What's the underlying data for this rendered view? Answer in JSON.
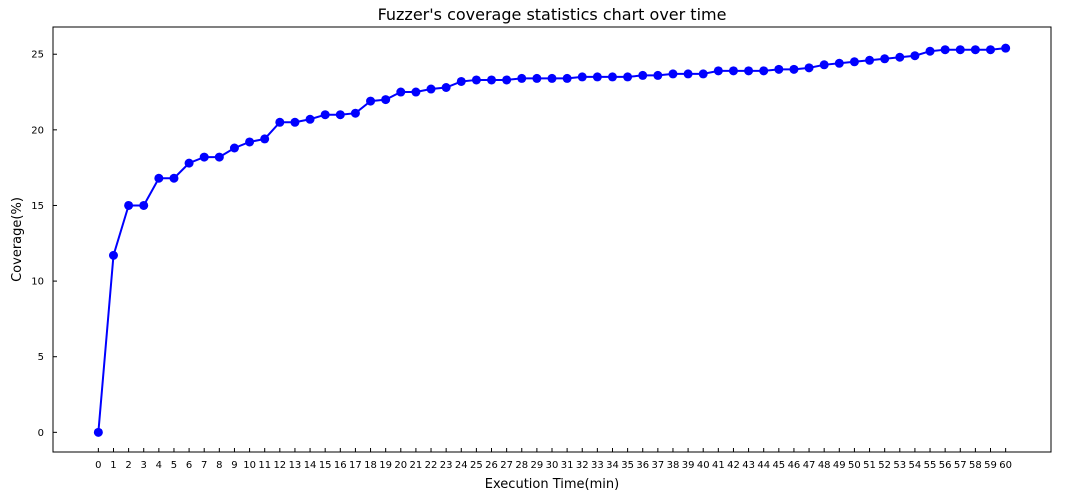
{
  "chart_data": {
    "type": "line",
    "title": "Fuzzer's coverage statistics chart over time",
    "xlabel": "Execution Time(min)",
    "ylabel": "Coverage(%)",
    "x": [
      0,
      1,
      2,
      3,
      4,
      5,
      6,
      7,
      8,
      9,
      10,
      11,
      12,
      13,
      14,
      15,
      16,
      17,
      18,
      19,
      20,
      21,
      22,
      23,
      24,
      25,
      26,
      27,
      28,
      29,
      30,
      31,
      32,
      33,
      34,
      35,
      36,
      37,
      38,
      39,
      40,
      41,
      42,
      43,
      44,
      45,
      46,
      47,
      48,
      49,
      50,
      51,
      52,
      53,
      54,
      55,
      56,
      57,
      58,
      59,
      60
    ],
    "series": [
      {
        "color": "#0000ff",
        "marker": "circle",
        "values": [
          0,
          11.7,
          15.0,
          15.0,
          16.8,
          16.8,
          17.8,
          18.2,
          18.2,
          18.8,
          19.2,
          19.4,
          20.5,
          20.5,
          20.7,
          21.0,
          21.0,
          21.1,
          21.9,
          22.0,
          22.5,
          22.5,
          22.7,
          22.8,
          23.2,
          23.3,
          23.3,
          23.3,
          23.4,
          23.4,
          23.4,
          23.4,
          23.5,
          23.5,
          23.5,
          23.5,
          23.6,
          23.6,
          23.7,
          23.7,
          23.7,
          23.9,
          23.9,
          23.9,
          23.9,
          24.0,
          24.0,
          24.1,
          24.3,
          24.4,
          24.5,
          24.6,
          24.7,
          24.8,
          24.9,
          25.2,
          25.3,
          25.3,
          25.3,
          25.3,
          25.4
        ]
      }
    ],
    "yticks": [
      0,
      5,
      10,
      15,
      20,
      25
    ],
    "xlim": [
      -3,
      63
    ],
    "ylim": [
      -1.3,
      26.8
    ],
    "grid": false,
    "legend": "none"
  }
}
